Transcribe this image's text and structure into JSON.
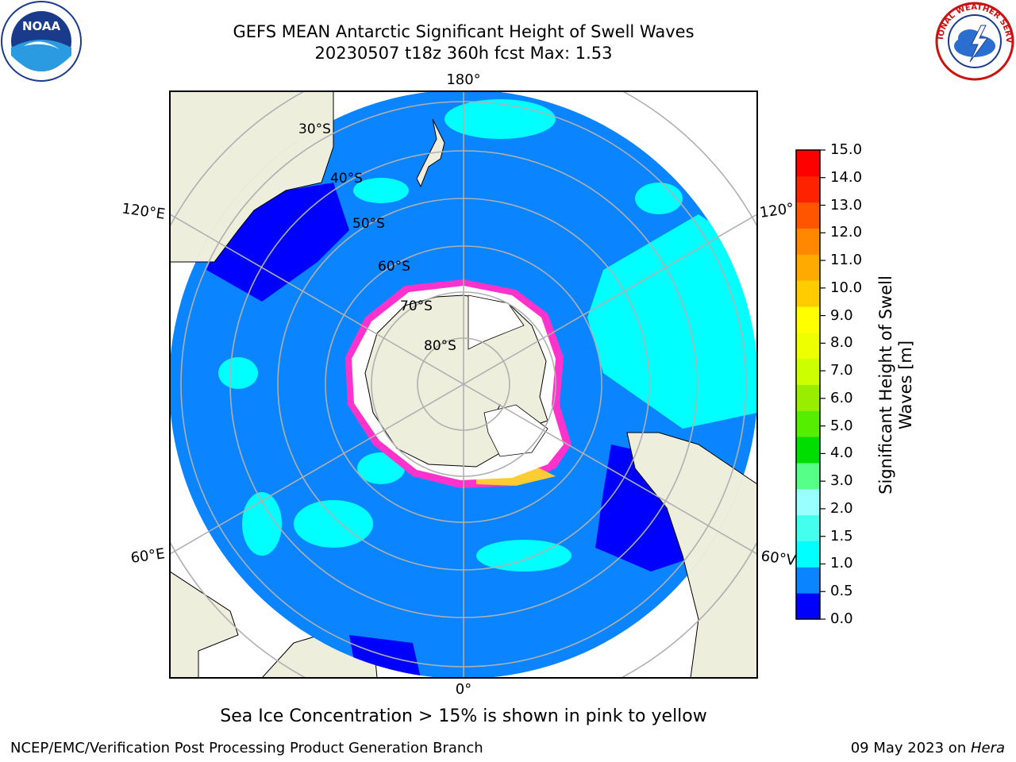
{
  "title": {
    "line1": "GEFS MEAN Antarctic Significant Height of Swell Waves",
    "line2": "20230507 t18z 360h fcst   Max: 1.53"
  },
  "map": {
    "projection": "south polar stereographic",
    "longitude_labels": {
      "top": "180°",
      "bottom": "0°",
      "left_upper": "120°E",
      "left_lower": "60°E",
      "right_upper": "120°",
      "right_lower": "60°V"
    },
    "latitude_labels": [
      "30°S",
      "40°S",
      "50°S",
      "60°S",
      "70°S",
      "80°S"
    ],
    "colors": {
      "ocean_dominant": "#0a84ff",
      "shallow_low": "#0000ff",
      "swell_1_1_5": "#00ffff",
      "land": "#eeeedd",
      "ice_white": "#ffffff",
      "ice_edge": "#ff33cc",
      "ice_yellow": "#ffcc33"
    }
  },
  "colorbar": {
    "title": "Significant Height of Swell Waves [m]",
    "ticks": [
      "15.0",
      "14.0",
      "13.0",
      "12.0",
      "11.0",
      "10.0",
      "9.0",
      "8.0",
      "7.0",
      "6.0",
      "5.0",
      "4.0",
      "3.0",
      "2.0",
      "1.5",
      "1.0",
      "0.5",
      "0.0"
    ],
    "colors": [
      "#0000ff",
      "#0a84ff",
      "#00ffff",
      "#44ffee",
      "#99ffff",
      "#55ff88",
      "#00dd00",
      "#55ee00",
      "#99ee00",
      "#ccff00",
      "#eeff00",
      "#ffff00",
      "#ffcc00",
      "#ffaa00",
      "#ff8800",
      "#ff5500",
      "#ff2200",
      "#ff0000"
    ]
  },
  "note": "Sea Ice Concentration > 15% is shown in pink to yellow",
  "footer": {
    "left": "NCEP/EMC/Verification Post Processing Product Generation Branch",
    "right_prefix": "09 May 2023 on ",
    "right_italic": "Hera"
  },
  "logos": {
    "noaa_text": "NOAA",
    "nws_text": "NATIONAL WEATHER SERVICE"
  }
}
